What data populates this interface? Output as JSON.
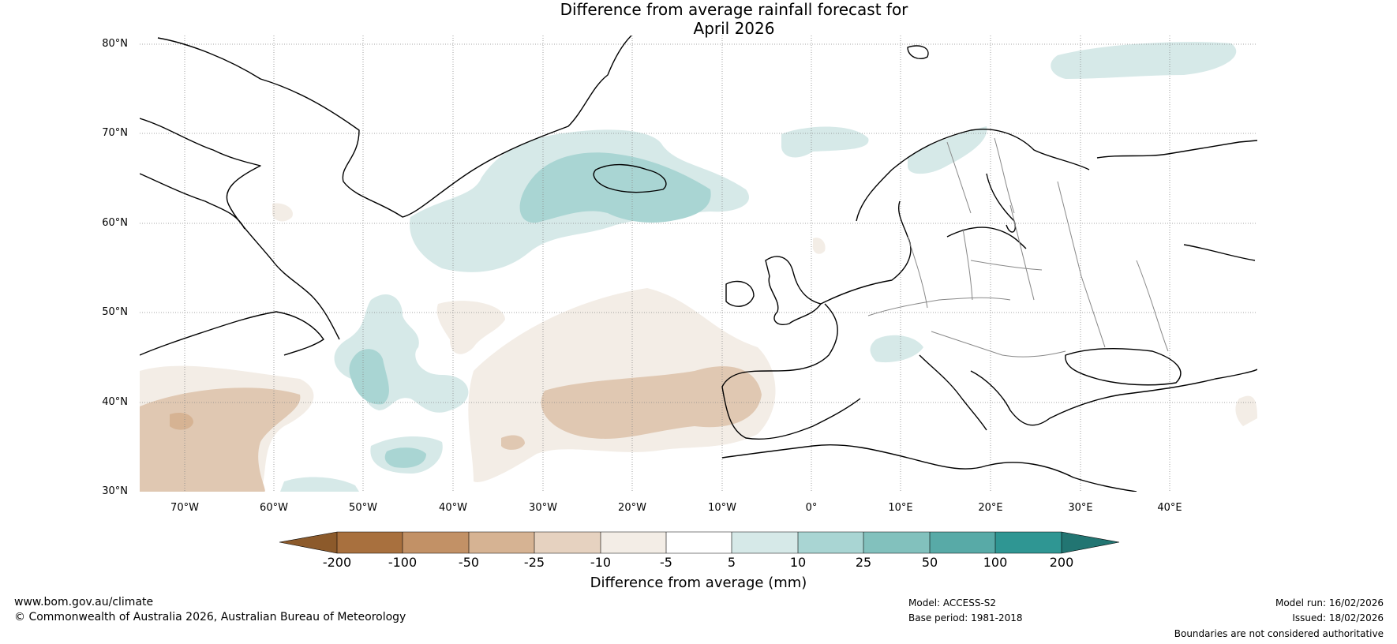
{
  "title": {
    "line1": "Difference from average rainfall forecast for",
    "line2": "April 2026"
  },
  "map": {
    "lat_labels": [
      "80°N",
      "70°N",
      "60°N",
      "50°N",
      "40°N",
      "30°N"
    ],
    "lon_labels": [
      "70°W",
      "60°W",
      "50°W",
      "40°W",
      "30°W",
      "20°W",
      "10°W",
      "0°",
      "10°E",
      "20°E",
      "30°E",
      "40°E"
    ],
    "extent": {
      "lon_min": -75,
      "lon_max": 50,
      "lat_min": 30,
      "lat_max": 81
    }
  },
  "colorbar": {
    "ticks": [
      "-200",
      "-100",
      "-50",
      "-25",
      "-10",
      "-5",
      "5",
      "10",
      "25",
      "50",
      "100",
      "200"
    ],
    "colors": [
      "#8c5a2b",
      "#a8703e",
      "#c29166",
      "#d6b393",
      "#e6d2c0",
      "#f3ede6",
      "#ffffff",
      "#d6e9e8",
      "#a9d5d3",
      "#82c1bd",
      "#58aaa7",
      "#2f9693",
      "#227572"
    ],
    "label": "Difference from average (mm)"
  },
  "footer": {
    "website": "www.bom.gov.au/climate",
    "copyright": "© Commonwealth of Australia 2026, Australian Bureau of Meteorology",
    "model": "Model: ACCESS-S2",
    "base_period": "Base period: 1981-2018",
    "model_run": "Model run: 16/02/2026",
    "issued": "Issued: 18/02/2026",
    "disclaimer": "Boundaries are not considered authoritative"
  }
}
